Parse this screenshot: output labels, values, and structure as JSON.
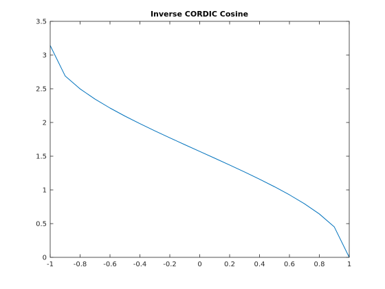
{
  "chart_data": {
    "type": "line",
    "title": "Inverse CORDIC Cosine",
    "xlabel": "",
    "ylabel": "",
    "xlim": [
      -1,
      1
    ],
    "ylim": [
      0,
      3.5
    ],
    "x_ticks": [
      -1,
      -0.8,
      -0.6,
      -0.4,
      -0.2,
      0,
      0.2,
      0.4,
      0.6,
      0.8,
      1
    ],
    "x_tick_labels": [
      "-1",
      "-0.8",
      "-0.6",
      "-0.4",
      "-0.2",
      "0",
      "0.2",
      "0.4",
      "0.6",
      "0.8",
      "1"
    ],
    "y_ticks": [
      0,
      0.5,
      1,
      1.5,
      2,
      2.5,
      3,
      3.5
    ],
    "y_tick_labels": [
      "0",
      "0.5",
      "1",
      "1.5",
      "2",
      "2.5",
      "3",
      "3.5"
    ],
    "grid": false,
    "box": true,
    "line_color": "#0072bd",
    "series": [
      {
        "x": [
          -1,
          -0.9,
          -0.8,
          -0.7,
          -0.6,
          -0.5,
          -0.4,
          -0.3,
          -0.2,
          -0.1,
          0,
          0.1,
          0.2,
          0.3,
          0.4,
          0.5,
          0.6,
          0.7,
          0.8,
          0.9,
          1
        ],
        "y": [
          3.1416,
          2.6906,
          2.4981,
          2.3462,
          2.2143,
          2.0944,
          1.9823,
          1.8755,
          1.7722,
          1.671,
          1.5708,
          1.4706,
          1.3694,
          1.2661,
          1.1593,
          1.0472,
          0.9273,
          0.7954,
          0.6435,
          0.451,
          0.0
        ]
      }
    ]
  }
}
